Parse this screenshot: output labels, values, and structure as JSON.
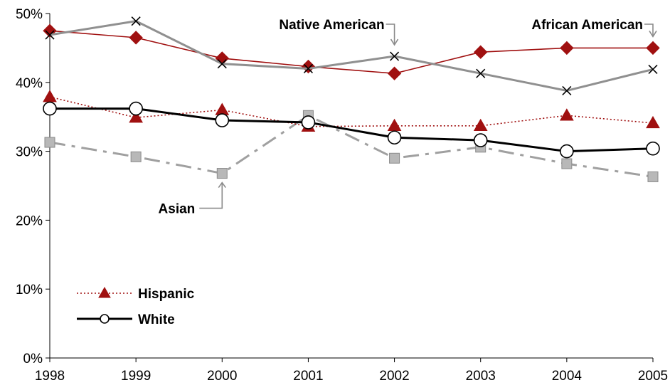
{
  "chart_data": {
    "type": "line",
    "title": "",
    "xlabel": "",
    "ylabel": "",
    "x": [
      "1998",
      "1999",
      "2000",
      "2001",
      "2002",
      "2003",
      "2004",
      "2005"
    ],
    "ylim": [
      0,
      50
    ],
    "yticks": [
      "0%",
      "10%",
      "20%",
      "30%",
      "40%",
      "50%"
    ],
    "ytick_values": [
      0,
      10,
      20,
      30,
      40,
      50
    ],
    "grid": false,
    "legend_position": "bottom-left",
    "series": [
      {
        "name": "African American",
        "values": [
          47.5,
          46.5,
          43.5,
          42.3,
          41.3,
          44.4,
          45.0,
          45.0
        ],
        "color": "#a01010",
        "marker": "diamond",
        "line_style": "solid"
      },
      {
        "name": "Native American",
        "values": [
          46.9,
          48.9,
          42.7,
          42.0,
          43.8,
          41.3,
          38.8,
          41.9
        ],
        "color": "#909090",
        "marker": "x",
        "line_style": "solid"
      },
      {
        "name": "Hispanic",
        "values": [
          37.9,
          34.9,
          36.0,
          33.6,
          33.7,
          33.7,
          35.2,
          34.1
        ],
        "color": "#a01010",
        "marker": "triangle",
        "line_style": "dotted"
      },
      {
        "name": "White",
        "values": [
          36.2,
          36.2,
          34.5,
          34.2,
          32.0,
          31.6,
          30.0,
          30.4
        ],
        "color": "#000000",
        "marker": "circle",
        "line_style": "solid"
      },
      {
        "name": "Asian",
        "values": [
          31.3,
          29.2,
          26.8,
          35.2,
          29.0,
          30.6,
          28.2,
          26.3
        ],
        "color": "#a0a0a0",
        "marker": "square",
        "line_style": "dashdot"
      }
    ],
    "annotations": [
      {
        "text": "Native American",
        "series": "Native American",
        "x": "2002"
      },
      {
        "text": "African American",
        "series": "African American",
        "x": "2005"
      },
      {
        "text": "Asian",
        "series": "Asian",
        "x": "2000"
      }
    ],
    "legend": [
      {
        "label": "Hispanic",
        "series": "Hispanic"
      },
      {
        "label": "White",
        "series": "White"
      }
    ]
  }
}
